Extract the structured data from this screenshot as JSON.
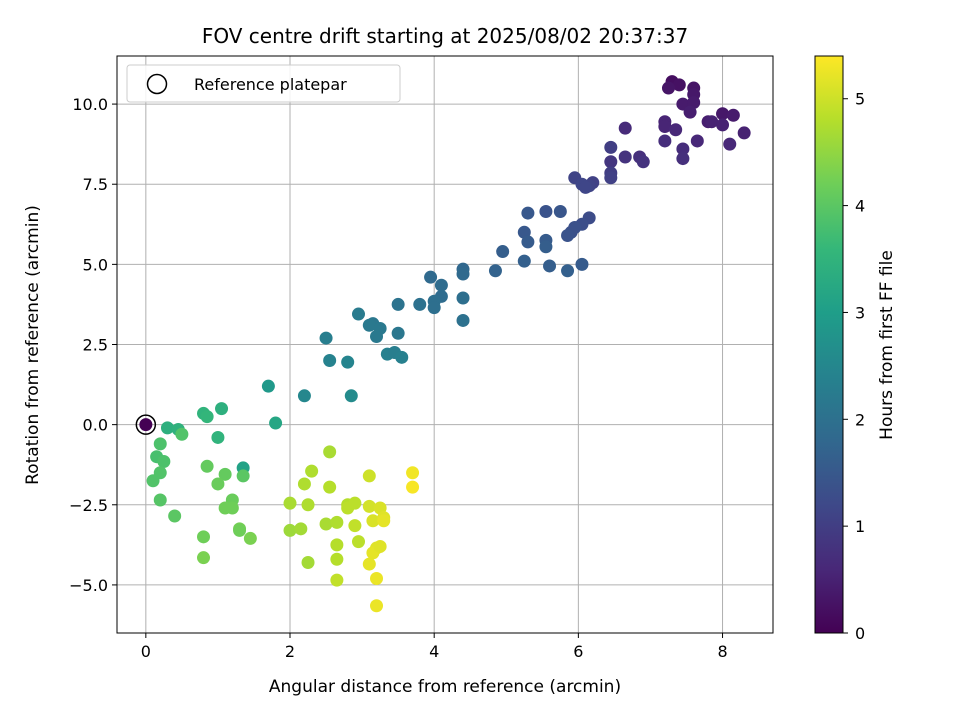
{
  "chart_data": {
    "type": "scatter",
    "title": "FOV centre drift starting at 2025/08/02 20:37:37",
    "xlabel": "Angular distance from reference (arcmin)",
    "ylabel": "Rotation from reference (arcmin)",
    "xlim": [
      -0.4,
      8.7
    ],
    "ylim": [
      -6.5,
      11.5
    ],
    "x_ticks": [
      0,
      2,
      4,
      6,
      8
    ],
    "y_ticks": [
      -5.0,
      -2.5,
      0.0,
      2.5,
      5.0,
      7.5,
      10.0
    ],
    "x_tick_labels": [
      "0",
      "2",
      "4",
      "6",
      "8"
    ],
    "y_tick_labels": [
      "−5.0",
      "−2.5",
      "0.0",
      "2.5",
      "5.0",
      "7.5",
      "10.0"
    ],
    "grid": true,
    "legend": {
      "placement": "upper-left",
      "entries": [
        "Reference platepar"
      ]
    },
    "colorbar": {
      "label": "Hours from first FF file",
      "colormap": "viridis",
      "range": [
        0,
        5.4
      ],
      "ticks": [
        0,
        1,
        2,
        3,
        4,
        5
      ],
      "tick_labels": [
        "0",
        "1",
        "2",
        "3",
        "4",
        "5"
      ]
    },
    "reference_point": {
      "x": 0,
      "y": 0,
      "hours": 0
    },
    "points": [
      {
        "x": 0.0,
        "y": 0.0,
        "h": 0.0
      },
      {
        "x": 7.3,
        "y": 10.7,
        "h": 0.2
      },
      {
        "x": 7.4,
        "y": 10.6,
        "h": 0.25
      },
      {
        "x": 7.25,
        "y": 10.5,
        "h": 0.3
      },
      {
        "x": 7.6,
        "y": 10.5,
        "h": 0.3
      },
      {
        "x": 7.6,
        "y": 10.3,
        "h": 0.35
      },
      {
        "x": 7.45,
        "y": 10.0,
        "h": 0.4
      },
      {
        "x": 7.6,
        "y": 10.05,
        "h": 0.4
      },
      {
        "x": 7.55,
        "y": 9.75,
        "h": 0.45
      },
      {
        "x": 8.0,
        "y": 9.7,
        "h": 0.35
      },
      {
        "x": 8.15,
        "y": 9.65,
        "h": 0.4
      },
      {
        "x": 7.8,
        "y": 9.45,
        "h": 0.45
      },
      {
        "x": 7.85,
        "y": 9.45,
        "h": 0.5
      },
      {
        "x": 8.0,
        "y": 9.35,
        "h": 0.5
      },
      {
        "x": 7.2,
        "y": 9.45,
        "h": 0.55
      },
      {
        "x": 7.2,
        "y": 9.3,
        "h": 0.55
      },
      {
        "x": 7.35,
        "y": 9.2,
        "h": 0.6
      },
      {
        "x": 8.3,
        "y": 9.1,
        "h": 0.5
      },
      {
        "x": 6.65,
        "y": 9.25,
        "h": 0.65
      },
      {
        "x": 7.65,
        "y": 8.85,
        "h": 0.6
      },
      {
        "x": 7.2,
        "y": 8.85,
        "h": 0.7
      },
      {
        "x": 8.1,
        "y": 8.75,
        "h": 0.6
      },
      {
        "x": 7.45,
        "y": 8.6,
        "h": 0.7
      },
      {
        "x": 7.45,
        "y": 8.3,
        "h": 0.75
      },
      {
        "x": 6.85,
        "y": 8.35,
        "h": 0.75
      },
      {
        "x": 6.9,
        "y": 8.2,
        "h": 0.8
      },
      {
        "x": 6.65,
        "y": 8.35,
        "h": 0.8
      },
      {
        "x": 6.45,
        "y": 8.2,
        "h": 0.85
      },
      {
        "x": 6.45,
        "y": 8.65,
        "h": 1.0
      },
      {
        "x": 6.45,
        "y": 7.85,
        "h": 1.0
      },
      {
        "x": 6.45,
        "y": 7.7,
        "h": 1.05
      },
      {
        "x": 6.2,
        "y": 7.55,
        "h": 1.05
      },
      {
        "x": 6.15,
        "y": 7.45,
        "h": 1.1
      },
      {
        "x": 5.95,
        "y": 7.7,
        "h": 1.1
      },
      {
        "x": 6.05,
        "y": 7.5,
        "h": 1.15
      },
      {
        "x": 6.1,
        "y": 7.4,
        "h": 1.15
      },
      {
        "x": 5.3,
        "y": 6.6,
        "h": 1.5
      },
      {
        "x": 5.55,
        "y": 6.65,
        "h": 1.4
      },
      {
        "x": 5.75,
        "y": 6.65,
        "h": 1.45
      },
      {
        "x": 6.15,
        "y": 6.45,
        "h": 1.25
      },
      {
        "x": 6.05,
        "y": 6.25,
        "h": 1.3
      },
      {
        "x": 5.95,
        "y": 6.15,
        "h": 1.35
      },
      {
        "x": 5.9,
        "y": 6.0,
        "h": 1.35
      },
      {
        "x": 5.85,
        "y": 5.9,
        "h": 1.4
      },
      {
        "x": 5.25,
        "y": 6.0,
        "h": 1.5
      },
      {
        "x": 5.3,
        "y": 5.7,
        "h": 1.55
      },
      {
        "x": 5.55,
        "y": 5.75,
        "h": 1.55
      },
      {
        "x": 5.55,
        "y": 5.55,
        "h": 1.6
      },
      {
        "x": 4.95,
        "y": 5.4,
        "h": 1.6
      },
      {
        "x": 5.25,
        "y": 5.1,
        "h": 1.65
      },
      {
        "x": 5.6,
        "y": 4.95,
        "h": 1.6
      },
      {
        "x": 5.85,
        "y": 4.8,
        "h": 1.65
      },
      {
        "x": 6.05,
        "y": 5.0,
        "h": 1.55
      },
      {
        "x": 4.85,
        "y": 4.8,
        "h": 1.7
      },
      {
        "x": 4.4,
        "y": 4.85,
        "h": 1.8
      },
      {
        "x": 4.4,
        "y": 4.7,
        "h": 1.85
      },
      {
        "x": 3.95,
        "y": 4.6,
        "h": 1.85
      },
      {
        "x": 4.1,
        "y": 4.35,
        "h": 1.9
      },
      {
        "x": 4.1,
        "y": 4.0,
        "h": 1.9
      },
      {
        "x": 4.0,
        "y": 3.85,
        "h": 1.95
      },
      {
        "x": 4.0,
        "y": 3.65,
        "h": 1.95
      },
      {
        "x": 3.8,
        "y": 3.75,
        "h": 2.0
      },
      {
        "x": 4.4,
        "y": 3.95,
        "h": 1.95
      },
      {
        "x": 4.4,
        "y": 3.25,
        "h": 2.0
      },
      {
        "x": 3.5,
        "y": 3.75,
        "h": 2.05
      },
      {
        "x": 3.15,
        "y": 3.15,
        "h": 2.15
      },
      {
        "x": 3.1,
        "y": 3.1,
        "h": 2.2
      },
      {
        "x": 3.25,
        "y": 3.0,
        "h": 2.2
      },
      {
        "x": 3.5,
        "y": 2.85,
        "h": 2.15
      },
      {
        "x": 3.2,
        "y": 2.75,
        "h": 2.2
      },
      {
        "x": 2.95,
        "y": 3.45,
        "h": 2.25
      },
      {
        "x": 2.5,
        "y": 2.7,
        "h": 2.3
      },
      {
        "x": 3.35,
        "y": 2.2,
        "h": 2.35
      },
      {
        "x": 3.45,
        "y": 2.25,
        "h": 2.3
      },
      {
        "x": 3.55,
        "y": 2.1,
        "h": 2.35
      },
      {
        "x": 2.55,
        "y": 2.0,
        "h": 2.4
      },
      {
        "x": 2.8,
        "y": 1.95,
        "h": 2.45
      },
      {
        "x": 2.2,
        "y": 0.9,
        "h": 2.5
      },
      {
        "x": 2.85,
        "y": 0.9,
        "h": 2.6
      },
      {
        "x": 1.7,
        "y": 1.2,
        "h": 2.9
      },
      {
        "x": 1.8,
        "y": 0.05,
        "h": 3.2
      },
      {
        "x": 1.35,
        "y": -1.35,
        "h": 3.1
      },
      {
        "x": 1.05,
        "y": 0.5,
        "h": 3.4
      },
      {
        "x": 0.8,
        "y": 0.35,
        "h": 3.5
      },
      {
        "x": 0.85,
        "y": 0.25,
        "h": 3.55
      },
      {
        "x": 1.0,
        "y": -0.4,
        "h": 3.5
      },
      {
        "x": 0.3,
        "y": -0.1,
        "h": 3.4
      },
      {
        "x": 0.45,
        "y": -0.15,
        "h": 3.45
      },
      {
        "x": 0.5,
        "y": -0.3,
        "h": 3.9
      },
      {
        "x": 0.2,
        "y": -0.6,
        "h": 3.85
      },
      {
        "x": 0.15,
        "y": -1.0,
        "h": 3.8
      },
      {
        "x": 0.25,
        "y": -1.15,
        "h": 3.85
      },
      {
        "x": 0.2,
        "y": -1.5,
        "h": 3.9
      },
      {
        "x": 0.1,
        "y": -1.75,
        "h": 3.9
      },
      {
        "x": 0.2,
        "y": -2.35,
        "h": 3.95
      },
      {
        "x": 0.4,
        "y": -2.85,
        "h": 4.0
      },
      {
        "x": 0.85,
        "y": -1.3,
        "h": 4.1
      },
      {
        "x": 1.1,
        "y": -1.55,
        "h": 4.1
      },
      {
        "x": 1.0,
        "y": -1.85,
        "h": 4.15
      },
      {
        "x": 1.35,
        "y": -1.6,
        "h": 4.0
      },
      {
        "x": 1.2,
        "y": -2.35,
        "h": 4.15
      },
      {
        "x": 1.1,
        "y": -2.6,
        "h": 4.2
      },
      {
        "x": 1.2,
        "y": -2.6,
        "h": 4.2
      },
      {
        "x": 1.3,
        "y": -3.25,
        "h": 4.25
      },
      {
        "x": 1.3,
        "y": -3.3,
        "h": 4.2
      },
      {
        "x": 1.45,
        "y": -3.55,
        "h": 4.3
      },
      {
        "x": 0.8,
        "y": -3.5,
        "h": 4.2
      },
      {
        "x": 0.8,
        "y": -4.15,
        "h": 4.3
      },
      {
        "x": 2.55,
        "y": -0.85,
        "h": 4.7
      },
      {
        "x": 2.3,
        "y": -1.45,
        "h": 4.75
      },
      {
        "x": 2.2,
        "y": -1.85,
        "h": 4.75
      },
      {
        "x": 2.55,
        "y": -1.95,
        "h": 4.8
      },
      {
        "x": 2.0,
        "y": -2.45,
        "h": 4.7
      },
      {
        "x": 2.25,
        "y": -2.5,
        "h": 4.75
      },
      {
        "x": 2.0,
        "y": -3.3,
        "h": 4.6
      },
      {
        "x": 2.15,
        "y": -3.25,
        "h": 4.65
      },
      {
        "x": 2.5,
        "y": -3.1,
        "h": 4.7
      },
      {
        "x": 2.65,
        "y": -3.05,
        "h": 4.75
      },
      {
        "x": 2.8,
        "y": -2.5,
        "h": 4.8
      },
      {
        "x": 2.8,
        "y": -2.6,
        "h": 4.85
      },
      {
        "x": 2.9,
        "y": -2.45,
        "h": 4.85
      },
      {
        "x": 2.9,
        "y": -3.15,
        "h": 4.9
      },
      {
        "x": 2.95,
        "y": -3.65,
        "h": 4.85
      },
      {
        "x": 2.65,
        "y": -3.75,
        "h": 4.8
      },
      {
        "x": 2.65,
        "y": -4.2,
        "h": 4.8
      },
      {
        "x": 2.65,
        "y": -4.85,
        "h": 4.9
      },
      {
        "x": 2.25,
        "y": -4.3,
        "h": 4.65
      },
      {
        "x": 3.1,
        "y": -1.6,
        "h": 5.0
      },
      {
        "x": 3.1,
        "y": -2.55,
        "h": 5.05
      },
      {
        "x": 3.25,
        "y": -2.6,
        "h": 5.1
      },
      {
        "x": 3.15,
        "y": -3.0,
        "h": 5.1
      },
      {
        "x": 3.3,
        "y": -2.9,
        "h": 5.15
      },
      {
        "x": 3.3,
        "y": -3.0,
        "h": 5.2
      },
      {
        "x": 3.2,
        "y": -3.85,
        "h": 5.15
      },
      {
        "x": 3.15,
        "y": -4.0,
        "h": 5.2
      },
      {
        "x": 3.25,
        "y": -3.8,
        "h": 5.15
      },
      {
        "x": 3.1,
        "y": -4.35,
        "h": 5.2
      },
      {
        "x": 3.2,
        "y": -4.8,
        "h": 5.25
      },
      {
        "x": 3.2,
        "y": -5.65,
        "h": 5.25
      },
      {
        "x": 3.7,
        "y": -1.5,
        "h": 5.3
      },
      {
        "x": 3.7,
        "y": -1.95,
        "h": 5.35
      }
    ]
  }
}
